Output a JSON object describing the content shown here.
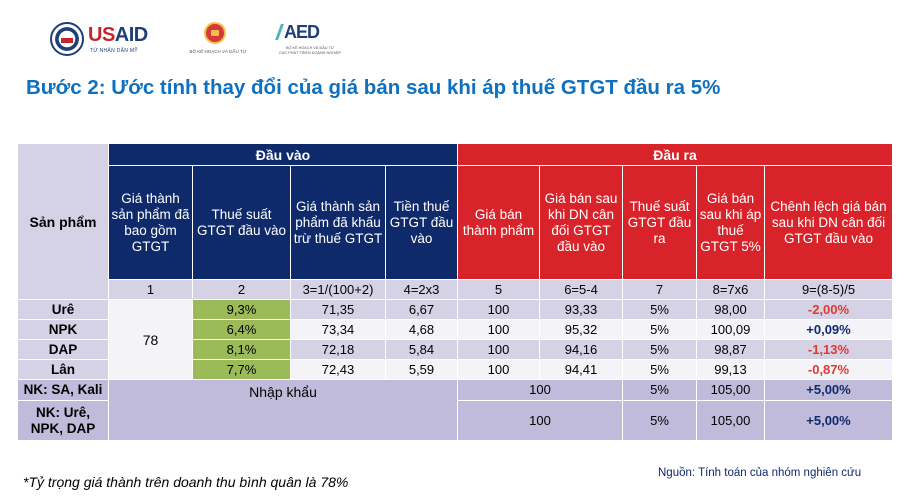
{
  "logos": {
    "usaid_word_a": "US",
    "usaid_word_b": "AID",
    "usaid_sub": "TỪ NHÂN DÂN MỸ",
    "mpi_text": "BỘ KẾ HOẠCH VÀ ĐẦU TƯ",
    "aed_mark": "AED",
    "aed_text_1": "BỘ KẾ HOẠCH VÀ ĐẦU TƯ",
    "aed_text_2": "CỤC PHÁT TRIỂN DOANH NGHIỆP"
  },
  "title": "Bước 2: Ước tính thay đổi của giá bán sau khi áp thuế GTGT đầu ra 5%",
  "table": {
    "product_header": "Sản phẩm",
    "group_input": "Đầu vào",
    "group_output": "Đầu ra",
    "headers": [
      "Giá thành sản phẩm đã bao gồm GTGT",
      "Thuế suất GTGT đầu vào",
      "Giá thành sản phẩm đã khấu trừ thuế GTGT",
      "Tiền thuế GTGT đầu vào",
      "Giá bán thành phẩm",
      "Giá bán sau khi DN cân đối GTGT đầu vào",
      "Thuế suất GTGT đầu ra",
      "Giá bán sau khi áp thuế GTGT 5%",
      "Chênh lệch giá bán sau khi DN cân đối GTGT đầu vào"
    ],
    "formulas": [
      "1",
      "2",
      "3=1/(100+2)",
      "4=2x3",
      "5",
      "6=5-4",
      "7",
      "8=7x6",
      "9=(8-5)/5"
    ],
    "shared_cost": "78",
    "rows": [
      {
        "product": "Urê",
        "c2": "9,3%",
        "c3": "71,35",
        "c4": "6,67",
        "c5": "100",
        "c6": "93,33",
        "c7": "5%",
        "c8": "98,00",
        "c9": "-2,00%"
      },
      {
        "product": "NPK",
        "c2": "6,4%",
        "c3": "73,34",
        "c4": "4,68",
        "c5": "100",
        "c6": "95,32",
        "c7": "5%",
        "c8": "100,09",
        "c9": "+0,09%"
      },
      {
        "product": "DAP",
        "c2": "8,1%",
        "c3": "72,18",
        "c4": "5,84",
        "c5": "100",
        "c6": "94,16",
        "c7": "5%",
        "c8": "98,87",
        "c9": "-1,13%"
      },
      {
        "product": "Lân",
        "c2": "7,7%",
        "c3": "72,43",
        "c4": "5,59",
        "c5": "100",
        "c6": "94,41",
        "c7": "5%",
        "c8": "99,13",
        "c9": "-0,87%"
      }
    ],
    "import_label": "Nhập khẩu",
    "import_rows": [
      {
        "product": "NK: SA, Kali",
        "c56": "100",
        "c7": "5%",
        "c8": "105,00",
        "c9": "+5,00%"
      },
      {
        "product": "NK: Urê, NPK, DAP",
        "c56": "100",
        "c7": "5%",
        "c8": "105,00",
        "c9": "+5,00%"
      }
    ]
  },
  "footer": {
    "note": "*Tỷ trọng giá thành trên doanh thu bình quân là 78%",
    "source": "Nguồn: Tính toán của nhóm nghiên cứu"
  },
  "colors": {
    "title": "#0f70c0",
    "input_header": "#0f2a6b",
    "output_header": "#d8232a",
    "input_tax_cell": "#9bbb59",
    "negative_change": "#e03a2f",
    "positive_change": "#0f2a6b"
  }
}
